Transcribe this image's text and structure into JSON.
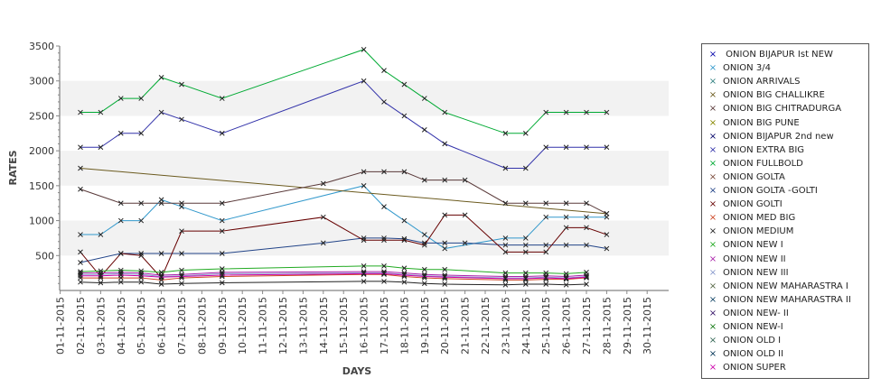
{
  "chart_data": {
    "type": "line",
    "xlabel": "DAYS",
    "ylabel": "RATES",
    "ylim": [
      0,
      3500
    ],
    "yticks": [
      500,
      1000,
      1500,
      2000,
      2500,
      3000,
      3500
    ],
    "categories": [
      "01-11-2015",
      "02-11-2015",
      "03-11-2015",
      "04-11-2015",
      "05-11-2015",
      "06-11-2015",
      "07-11-2015",
      "08-11-2015",
      "09-11-2015",
      "10-11-2015",
      "11-11-2015",
      "12-11-2015",
      "13-11-2015",
      "14-11-2015",
      "15-11-2015",
      "16-11-2015",
      "17-11-2015",
      "18-11-2015",
      "19-11-2015",
      "20-11-2015",
      "21-11-2015",
      "22-11-2015",
      "23-11-2015",
      "24-11-2015",
      "25-11-2015",
      "26-11-2015",
      "27-11-2015",
      "28-11-2015",
      "29-11-2015",
      "30-11-2015"
    ],
    "legend_position": "right",
    "grid": "alternating horizontal bands",
    "series": [
      {
        "name": " ONION BIJAPUR Ist NEW",
        "color": "#0000aa",
        "points": []
      },
      {
        "name": "ONION 3/4",
        "color": "#3399cc",
        "points": [
          [
            "02-11-2015",
            800
          ],
          [
            "03-11-2015",
            800
          ],
          [
            "04-11-2015",
            1000
          ],
          [
            "05-11-2015",
            1000
          ],
          [
            "06-11-2015",
            1300
          ],
          [
            "07-11-2015",
            1200
          ],
          [
            "09-11-2015",
            1000
          ],
          [
            "16-11-2015",
            1500
          ],
          [
            "17-11-2015",
            1200
          ],
          [
            "18-11-2015",
            1000
          ],
          [
            "19-11-2015",
            800
          ],
          [
            "20-11-2015",
            600
          ],
          [
            "23-11-2015",
            750
          ],
          [
            "24-11-2015",
            750
          ],
          [
            "25-11-2015",
            1050
          ],
          [
            "26-11-2015",
            1050
          ],
          [
            "27-11-2015",
            1050
          ],
          [
            "28-11-2015",
            1050
          ]
        ]
      },
      {
        "name": "ONION ARRIVALS",
        "color": "#2f7f7f",
        "points": []
      },
      {
        "name": "ONION BIG CHALLIKRE",
        "color": "#6b5a1e",
        "points": [
          [
            "02-11-2015",
            1750
          ],
          [
            "28-11-2015",
            1100
          ]
        ]
      },
      {
        "name": "ONION BIG CHITRADURGA",
        "color": "#5a3a3a",
        "points": [
          [
            "02-11-2015",
            1450
          ],
          [
            "04-11-2015",
            1250
          ],
          [
            "05-11-2015",
            1250
          ],
          [
            "06-11-2015",
            1250
          ],
          [
            "07-11-2015",
            1250
          ],
          [
            "09-11-2015",
            1250
          ],
          [
            "14-11-2015",
            1530
          ],
          [
            "16-11-2015",
            1700
          ],
          [
            "17-11-2015",
            1700
          ],
          [
            "18-11-2015",
            1700
          ],
          [
            "19-11-2015",
            1580
          ],
          [
            "20-11-2015",
            1580
          ],
          [
            "21-11-2015",
            1580
          ],
          [
            "23-11-2015",
            1250
          ],
          [
            "24-11-2015",
            1250
          ],
          [
            "25-11-2015",
            1250
          ],
          [
            "26-11-2015",
            1250
          ],
          [
            "27-11-2015",
            1250
          ],
          [
            "28-11-2015",
            1100
          ]
        ]
      },
      {
        "name": "ONION BIG PUNE",
        "color": "#888800",
        "points": []
      },
      {
        "name": "ONION BIJAPUR 2nd new",
        "color": "#000066",
        "points": []
      },
      {
        "name": "ONION EXTRA BIG",
        "color": "#3333aa",
        "points": [
          [
            "02-11-2015",
            2050
          ],
          [
            "03-11-2015",
            2050
          ],
          [
            "04-11-2015",
            2250
          ],
          [
            "05-11-2015",
            2250
          ],
          [
            "06-11-2015",
            2550
          ],
          [
            "07-11-2015",
            2450
          ],
          [
            "09-11-2015",
            2250
          ],
          [
            "16-11-2015",
            3000
          ],
          [
            "17-11-2015",
            2700
          ],
          [
            "18-11-2015",
            2500
          ],
          [
            "19-11-2015",
            2300
          ],
          [
            "20-11-2015",
            2100
          ],
          [
            "23-11-2015",
            1750
          ],
          [
            "24-11-2015",
            1750
          ],
          [
            "25-11-2015",
            2050
          ],
          [
            "26-11-2015",
            2050
          ],
          [
            "27-11-2015",
            2050
          ],
          [
            "28-11-2015",
            2050
          ]
        ]
      },
      {
        "name": "ONION FULLBOLD",
        "color": "#00aa33",
        "points": [
          [
            "02-11-2015",
            2550
          ],
          [
            "03-11-2015",
            2550
          ],
          [
            "04-11-2015",
            2750
          ],
          [
            "05-11-2015",
            2750
          ],
          [
            "06-11-2015",
            3050
          ],
          [
            "07-11-2015",
            2950
          ],
          [
            "09-11-2015",
            2750
          ],
          [
            "16-11-2015",
            3450
          ],
          [
            "17-11-2015",
            3150
          ],
          [
            "18-11-2015",
            2950
          ],
          [
            "19-11-2015",
            2750
          ],
          [
            "20-11-2015",
            2550
          ],
          [
            "23-11-2015",
            2250
          ],
          [
            "24-11-2015",
            2250
          ],
          [
            "25-11-2015",
            2550
          ],
          [
            "26-11-2015",
            2550
          ],
          [
            "27-11-2015",
            2550
          ],
          [
            "28-11-2015",
            2550
          ]
        ]
      },
      {
        "name": "ONION GOLTA",
        "color": "#7a4a3a",
        "points": []
      },
      {
        "name": "ONION GOLTA -GOLTI",
        "color": "#224488",
        "points": [
          [
            "02-11-2015",
            400
          ],
          [
            "04-11-2015",
            530
          ],
          [
            "05-11-2015",
            530
          ],
          [
            "06-11-2015",
            530
          ],
          [
            "07-11-2015",
            530
          ],
          [
            "09-11-2015",
            530
          ],
          [
            "14-11-2015",
            680
          ],
          [
            "16-11-2015",
            750
          ],
          [
            "17-11-2015",
            750
          ],
          [
            "18-11-2015",
            740
          ],
          [
            "19-11-2015",
            680
          ],
          [
            "20-11-2015",
            680
          ],
          [
            "21-11-2015",
            680
          ],
          [
            "23-11-2015",
            650
          ],
          [
            "24-11-2015",
            650
          ],
          [
            "25-11-2015",
            650
          ],
          [
            "26-11-2015",
            650
          ],
          [
            "27-11-2015",
            650
          ],
          [
            "28-11-2015",
            600
          ]
        ]
      },
      {
        "name": "ONION GOLTI",
        "color": "#660000",
        "points": [
          [
            "02-11-2015",
            550
          ],
          [
            "03-11-2015",
            200
          ],
          [
            "04-11-2015",
            530
          ],
          [
            "05-11-2015",
            500
          ],
          [
            "06-11-2015",
            180
          ],
          [
            "07-11-2015",
            850
          ],
          [
            "09-11-2015",
            850
          ],
          [
            "14-11-2015",
            1050
          ],
          [
            "16-11-2015",
            720
          ],
          [
            "17-11-2015",
            720
          ],
          [
            "18-11-2015",
            720
          ],
          [
            "19-11-2015",
            650
          ],
          [
            "20-11-2015",
            1080
          ],
          [
            "21-11-2015",
            1080
          ],
          [
            "23-11-2015",
            550
          ],
          [
            "24-11-2015",
            550
          ],
          [
            "25-11-2015",
            550
          ],
          [
            "26-11-2015",
            900
          ],
          [
            "27-11-2015",
            900
          ],
          [
            "28-11-2015",
            800
          ]
        ]
      },
      {
        "name": "ONION MED BIG",
        "color": "#cc4422",
        "points": [
          [
            "02-11-2015",
            180
          ],
          [
            "03-11-2015",
            180
          ],
          [
            "04-11-2015",
            180
          ],
          [
            "05-11-2015",
            180
          ],
          [
            "06-11-2015",
            150
          ],
          [
            "07-11-2015",
            180
          ],
          [
            "09-11-2015",
            200
          ],
          [
            "16-11-2015",
            230
          ],
          [
            "17-11-2015",
            230
          ],
          [
            "18-11-2015",
            200
          ],
          [
            "19-11-2015",
            180
          ],
          [
            "20-11-2015",
            170
          ],
          [
            "23-11-2015",
            150
          ],
          [
            "24-11-2015",
            150
          ],
          [
            "25-11-2015",
            160
          ],
          [
            "26-11-2015",
            160
          ],
          [
            "27-11-2015",
            180
          ]
        ]
      },
      {
        "name": "ONION MEDIUM",
        "color": "#222222",
        "points": [
          [
            "02-11-2015",
            120
          ],
          [
            "03-11-2015",
            110
          ],
          [
            "04-11-2015",
            120
          ],
          [
            "05-11-2015",
            120
          ],
          [
            "06-11-2015",
            90
          ],
          [
            "07-11-2015",
            100
          ],
          [
            "09-11-2015",
            110
          ],
          [
            "16-11-2015",
            130
          ],
          [
            "17-11-2015",
            130
          ],
          [
            "18-11-2015",
            120
          ],
          [
            "19-11-2015",
            100
          ],
          [
            "20-11-2015",
            90
          ],
          [
            "23-11-2015",
            80
          ],
          [
            "24-11-2015",
            90
          ],
          [
            "25-11-2015",
            90
          ],
          [
            "26-11-2015",
            80
          ],
          [
            "27-11-2015",
            90
          ]
        ]
      },
      {
        "name": "ONION NEW I",
        "color": "#22aa22",
        "points": [
          [
            "02-11-2015",
            270
          ],
          [
            "03-11-2015",
            280
          ],
          [
            "04-11-2015",
            290
          ],
          [
            "05-11-2015",
            280
          ],
          [
            "06-11-2015",
            260
          ],
          [
            "07-11-2015",
            290
          ],
          [
            "09-11-2015",
            310
          ],
          [
            "16-11-2015",
            350
          ],
          [
            "17-11-2015",
            350
          ],
          [
            "18-11-2015",
            320
          ],
          [
            "19-11-2015",
            300
          ],
          [
            "20-11-2015",
            300
          ],
          [
            "23-11-2015",
            250
          ],
          [
            "24-11-2015",
            250
          ],
          [
            "25-11-2015",
            250
          ],
          [
            "26-11-2015",
            240
          ],
          [
            "27-11-2015",
            260
          ]
        ]
      },
      {
        "name": "ONION NEW II",
        "color": "#aa22aa",
        "points": [
          [
            "02-11-2015",
            250
          ],
          [
            "03-11-2015",
            250
          ],
          [
            "04-11-2015",
            260
          ],
          [
            "05-11-2015",
            250
          ],
          [
            "06-11-2015",
            220
          ],
          [
            "07-11-2015",
            230
          ],
          [
            "09-11-2015",
            260
          ],
          [
            "16-11-2015",
            270
          ],
          [
            "17-11-2015",
            270
          ],
          [
            "18-11-2015",
            250
          ],
          [
            "19-11-2015",
            230
          ],
          [
            "20-11-2015",
            220
          ],
          [
            "23-11-2015",
            200
          ],
          [
            "24-11-2015",
            200
          ],
          [
            "25-11-2015",
            210
          ],
          [
            "26-11-2015",
            200
          ],
          [
            "27-11-2015",
            220
          ]
        ]
      },
      {
        "name": "ONION NEW III",
        "color": "#8899cc",
        "points": [
          [
            "02-11-2015",
            230
          ],
          [
            "03-11-2015",
            230
          ],
          [
            "04-11-2015",
            240
          ],
          [
            "05-11-2015",
            230
          ],
          [
            "06-11-2015",
            200
          ],
          [
            "07-11-2015",
            210
          ],
          [
            "09-11-2015",
            240
          ],
          [
            "16-11-2015",
            250
          ],
          [
            "17-11-2015",
            250
          ],
          [
            "18-11-2015",
            230
          ],
          [
            "19-11-2015",
            210
          ],
          [
            "20-11-2015",
            200
          ],
          [
            "23-11-2015",
            180
          ],
          [
            "24-11-2015",
            180
          ],
          [
            "25-11-2015",
            190
          ],
          [
            "26-11-2015",
            180
          ],
          [
            "27-11-2015",
            200
          ]
        ]
      },
      {
        "name": "ONION NEW MAHARASTRA I",
        "color": "#556644",
        "points": []
      },
      {
        "name": "ONION NEW MAHARASTRA II",
        "color": "#114466",
        "points": []
      },
      {
        "name": "ONION NEW- II",
        "color": "#331166",
        "points": []
      },
      {
        "name": "ONION NEW-I",
        "color": "#117711",
        "points": []
      },
      {
        "name": "ONION OLD I",
        "color": "#336655",
        "points": []
      },
      {
        "name": "ONION OLD II",
        "color": "#003355",
        "points": []
      },
      {
        "name": "ONION SUPER",
        "color": "#cc00aa",
        "points": [
          [
            "02-11-2015",
            210
          ],
          [
            "03-11-2015",
            210
          ],
          [
            "04-11-2015",
            220
          ],
          [
            "05-11-2015",
            210
          ],
          [
            "06-11-2015",
            190
          ],
          [
            "07-11-2015",
            200
          ],
          [
            "09-11-2015",
            220
          ],
          [
            "16-11-2015",
            240
          ],
          [
            "17-11-2015",
            240
          ],
          [
            "18-11-2015",
            220
          ],
          [
            "19-11-2015",
            200
          ],
          [
            "20-11-2015",
            190
          ],
          [
            "23-11-2015",
            170
          ],
          [
            "24-11-2015",
            170
          ],
          [
            "25-11-2015",
            180
          ],
          [
            "26-11-2015",
            170
          ],
          [
            "27-11-2015",
            190
          ]
        ]
      }
    ]
  }
}
